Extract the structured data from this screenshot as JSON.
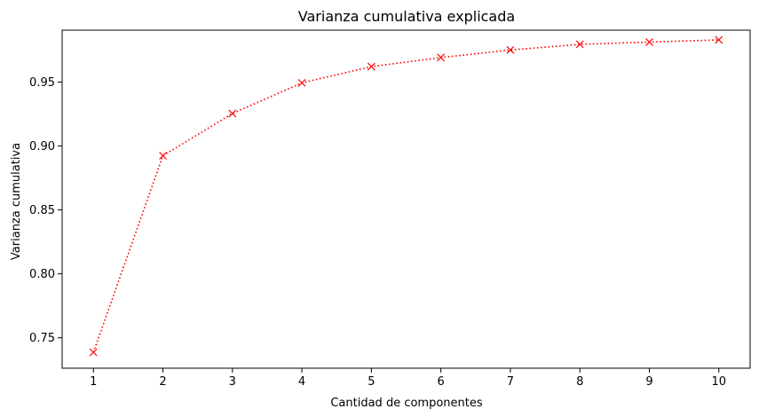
{
  "chart_data": {
    "type": "line",
    "title": "Varianza cumulativa explicada",
    "xlabel": "Cantidad de componentes",
    "ylabel": "Varianza cumulativa",
    "x": [
      1,
      2,
      3,
      4,
      5,
      6,
      7,
      8,
      9,
      10
    ],
    "x_ticks": [
      "1",
      "2",
      "3",
      "4",
      "5",
      "6",
      "7",
      "8",
      "9",
      "10"
    ],
    "y_ticks": [
      "0.75",
      "0.80",
      "0.85",
      "0.90",
      "0.95"
    ],
    "y_tick_values": [
      0.75,
      0.8,
      0.85,
      0.9,
      0.95
    ],
    "xlim": [
      0.55,
      10.45
    ],
    "ylim": [
      0.7262,
      0.9906
    ],
    "series": [
      {
        "values": [
          0.7386,
          0.8924,
          0.9254,
          0.9494,
          0.9621,
          0.9692,
          0.9751,
          0.9795,
          0.9813,
          0.983
        ],
        "color": "#ff0000",
        "line_style": "dotted",
        "marker": "x"
      }
    ],
    "grid": false,
    "legend": "none"
  }
}
